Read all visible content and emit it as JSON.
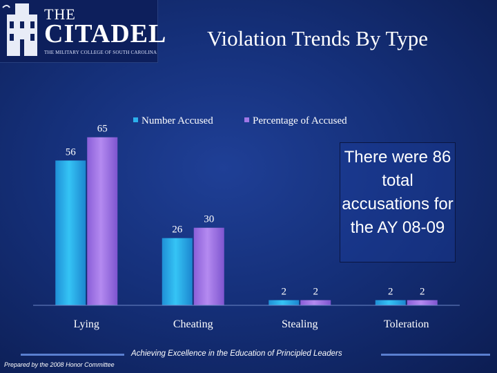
{
  "logo": {
    "the": "THE",
    "citadel": "CITADEL",
    "tagline": "THE MILITARY COLLEGE OF SOUTH CAROLINA"
  },
  "title": "Violation Trends By Type",
  "callout": "There were 86 total accusations for the AY 08-09",
  "footer": {
    "tagline": "Achieving Excellence in the Education of Principled Leaders",
    "prepared": "Prepared by the 2008 Honor Committee"
  },
  "colors": {
    "number_accused": "#2bb0ec",
    "percentage_accused": "#a077e6",
    "background": "#15307a"
  },
  "chart_data": {
    "type": "bar",
    "categories": [
      "Lying",
      "Cheating",
      "Stealing",
      "Toleration"
    ],
    "series": [
      {
        "name": "Number Accused",
        "values": [
          56,
          26,
          2,
          2
        ]
      },
      {
        "name": "Percentage of Accused",
        "values": [
          65,
          30,
          2,
          2
        ]
      }
    ],
    "legend": "top",
    "ylim": [
      0,
      70
    ],
    "grid": false
  }
}
